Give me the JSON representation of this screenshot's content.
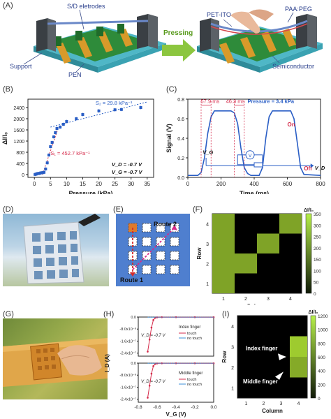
{
  "panels": {
    "A": "(A)",
    "B": "(B)",
    "C": "(C)",
    "D": "(D)",
    "E": "(E)",
    "F": "(F)",
    "G": "(G)",
    "H": "(H)",
    "I": "(I)"
  },
  "schematic": {
    "sd_electrodes": "S/D eletrodes",
    "support": "Support",
    "pen": "PEN",
    "pressing": "Pressing",
    "pet_ito": "PET-ITO",
    "paa_peg": "PAA:PEG",
    "semiconductor": "Semiconductor"
  },
  "panel_e": {
    "route1": "Route 1",
    "route2": "Route 2"
  },
  "panel_i": {
    "index": "Index finger",
    "middle": "Middle finger"
  },
  "chart_data": [
    {
      "id": "B",
      "type": "scatter",
      "xlabel": "Pressure (kPa)",
      "ylabel": "ΔI/I₀",
      "xlim": [
        -2,
        37
      ],
      "ylim": [
        -100,
        2700
      ],
      "xticks": [
        "0",
        "5",
        "10",
        "15",
        "20",
        "25",
        "30",
        "35"
      ],
      "yticks": [
        "0",
        "400",
        "800",
        "1200",
        "1600",
        "2000",
        "2400"
      ],
      "x": [
        0.2,
        0.5,
        0.8,
        1.2,
        1.6,
        2.0,
        2.5,
        3.0,
        3.5,
        4.0,
        4.5,
        5.0,
        5.5,
        6.0,
        6.5,
        7.0,
        8.0,
        9.0,
        10.0,
        13.0,
        15.0,
        20.0,
        25.0,
        27.0,
        33.0
      ],
      "y": [
        5,
        15,
        30,
        40,
        45,
        60,
        70,
        80,
        200,
        420,
        700,
        1000,
        1150,
        1350,
        1500,
        1650,
        1700,
        1800,
        1900,
        2000,
        2150,
        2280,
        2320,
        2330,
        2400
      ],
      "annotations": {
        "s2": "S₂ = 29.8 kPa⁻¹",
        "s1": "S₁ = 452.7 kPa⁻¹",
        "vd": "V_D = -0.7 V",
        "vg": "V_G = -0.7 V"
      }
    },
    {
      "id": "C",
      "type": "line",
      "xlabel": "Time (ms)",
      "ylabel": "Signal (V)",
      "xlim": [
        0,
        800
      ],
      "ylim": [
        0,
        0.8
      ],
      "xticks": [
        "0",
        "200",
        "400",
        "600",
        "800"
      ],
      "yticks": [
        "0.0",
        "0.2",
        "0.4",
        "0.6",
        "0.8"
      ],
      "x": [
        0,
        60,
        80,
        100,
        120,
        140,
        160,
        260,
        280,
        300,
        320,
        340,
        360,
        380,
        430,
        450,
        470,
        490,
        510,
        620,
        640,
        660,
        680,
        700,
        800
      ],
      "y": [
        0.02,
        0.02,
        0.05,
        0.2,
        0.45,
        0.62,
        0.68,
        0.68,
        0.66,
        0.55,
        0.3,
        0.1,
        0.04,
        0.02,
        0.02,
        0.1,
        0.4,
        0.62,
        0.68,
        0.68,
        0.6,
        0.35,
        0.1,
        0.03,
        0.02
      ],
      "annotations": {
        "t1": "57.9 ms",
        "t2": "46.3 ms",
        "pressure": "Pressure = 3.4 kPa",
        "on": "On",
        "off": "Off",
        "vg": "V_G",
        "vd": "V_D",
        "v": "V"
      }
    },
    {
      "id": "F",
      "type": "heatmap",
      "xlabel": "Column",
      "ylabel": "Row",
      "colorbar_label": "ΔI/I₀",
      "colorbar_ticks": [
        "0",
        "50",
        "100",
        "150",
        "200",
        "250",
        "300",
        "350"
      ],
      "xticks": [
        "1",
        "2",
        "3",
        "4"
      ],
      "yticks": [
        "1",
        "2",
        "3",
        "4"
      ],
      "cells": [
        {
          "row": 4,
          "col": 1,
          "value": 250
        },
        {
          "row": 3,
          "col": 1,
          "value": 250
        },
        {
          "row": 2,
          "col": 1,
          "value": 250
        },
        {
          "row": 1,
          "col": 1,
          "value": 250
        },
        {
          "row": 3,
          "col": 3,
          "value": 250
        },
        {
          "row": 2,
          "col": 2,
          "value": 250
        },
        {
          "row": 4,
          "col": 4,
          "value": 250
        }
      ]
    },
    {
      "id": "H",
      "type": "line",
      "xlabel": "V_G (V)",
      "ylabel": "I_D (A)",
      "xlim": [
        -0.8,
        0.0
      ],
      "xticks": [
        "-0.8",
        "-0.6",
        "-0.4",
        "-0.2",
        "0.0"
      ],
      "top_yticks": [
        "0.0",
        "-8.0x10⁻⁸",
        "-1.6x10⁻⁷",
        "-2.4x10⁻⁷"
      ],
      "bottom_yticks": [
        "0.0",
        "-8.0x10⁻⁸",
        "-1.6x10⁻⁷",
        "-2.4x10⁻⁷"
      ],
      "series": [
        {
          "name": "touch",
          "x": [
            -0.7,
            -0.68,
            -0.66,
            -0.64,
            -0.62,
            -0.6,
            -0.55,
            -0.4,
            -0.2,
            0.0
          ],
          "y": [
            -2.3e-07,
            -1.5e-07,
            -7e-08,
            -2e-08,
            -5e-09,
            -2e-09,
            -1e-09,
            -1e-09,
            -1e-09,
            -1e-09
          ]
        },
        {
          "name": "no touch",
          "x": [
            -0.7,
            -0.6,
            -0.4,
            -0.2,
            0.0
          ],
          "y": [
            -1e-09,
            -1e-09,
            -1e-09,
            -1e-09,
            -1e-09
          ]
        }
      ],
      "labels": {
        "top_finger": "Index finger",
        "bottom_finger": "Middle finger",
        "touch": "touch",
        "no_touch": "no touch",
        "vd_top": "V_D = -0.7 V",
        "vd_bottom": "V_D = -0.7 V"
      }
    },
    {
      "id": "I",
      "type": "heatmap",
      "xlabel": "Column",
      "ylabel": "Row",
      "colorbar_label": "ΔI/I₀",
      "colorbar_ticks": [
        "0",
        "200",
        "400",
        "600",
        "800",
        "1000",
        "1200"
      ],
      "xticks": [
        "1",
        "2",
        "3",
        "4"
      ],
      "yticks": [
        "1",
        "2",
        "3",
        "4"
      ],
      "cells": [
        {
          "row": 2,
          "col": 4,
          "value": 900
        },
        {
          "row": 3,
          "col": 4,
          "value": 1100
        }
      ]
    }
  ]
}
